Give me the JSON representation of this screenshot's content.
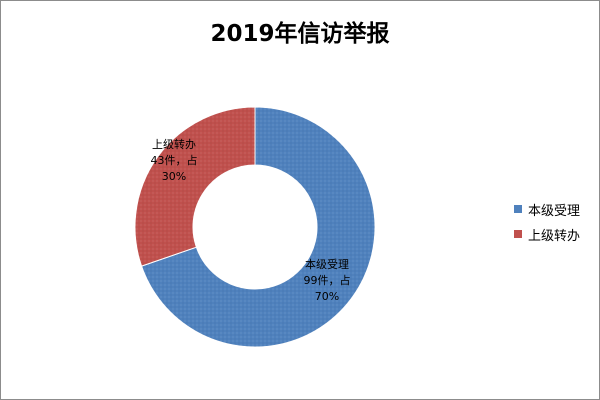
{
  "chart_data": {
    "type": "pie",
    "title": "2019年信访举报",
    "categories": [
      "本级受理",
      "上级转办"
    ],
    "values": [
      99,
      43
    ],
    "percents": [
      70,
      30
    ],
    "colors": [
      "#4f81bd",
      "#c0504d"
    ],
    "data_labels": [
      [
        "本级受理",
        "99件，占",
        "70%"
      ],
      [
        "上级转办",
        "43件，占",
        "30%"
      ]
    ],
    "legend": [
      {
        "label": "本级受理",
        "color": "#4f81bd"
      },
      {
        "label": "上级转办",
        "color": "#c0504d"
      }
    ],
    "legend_position": "right",
    "donut": true
  }
}
